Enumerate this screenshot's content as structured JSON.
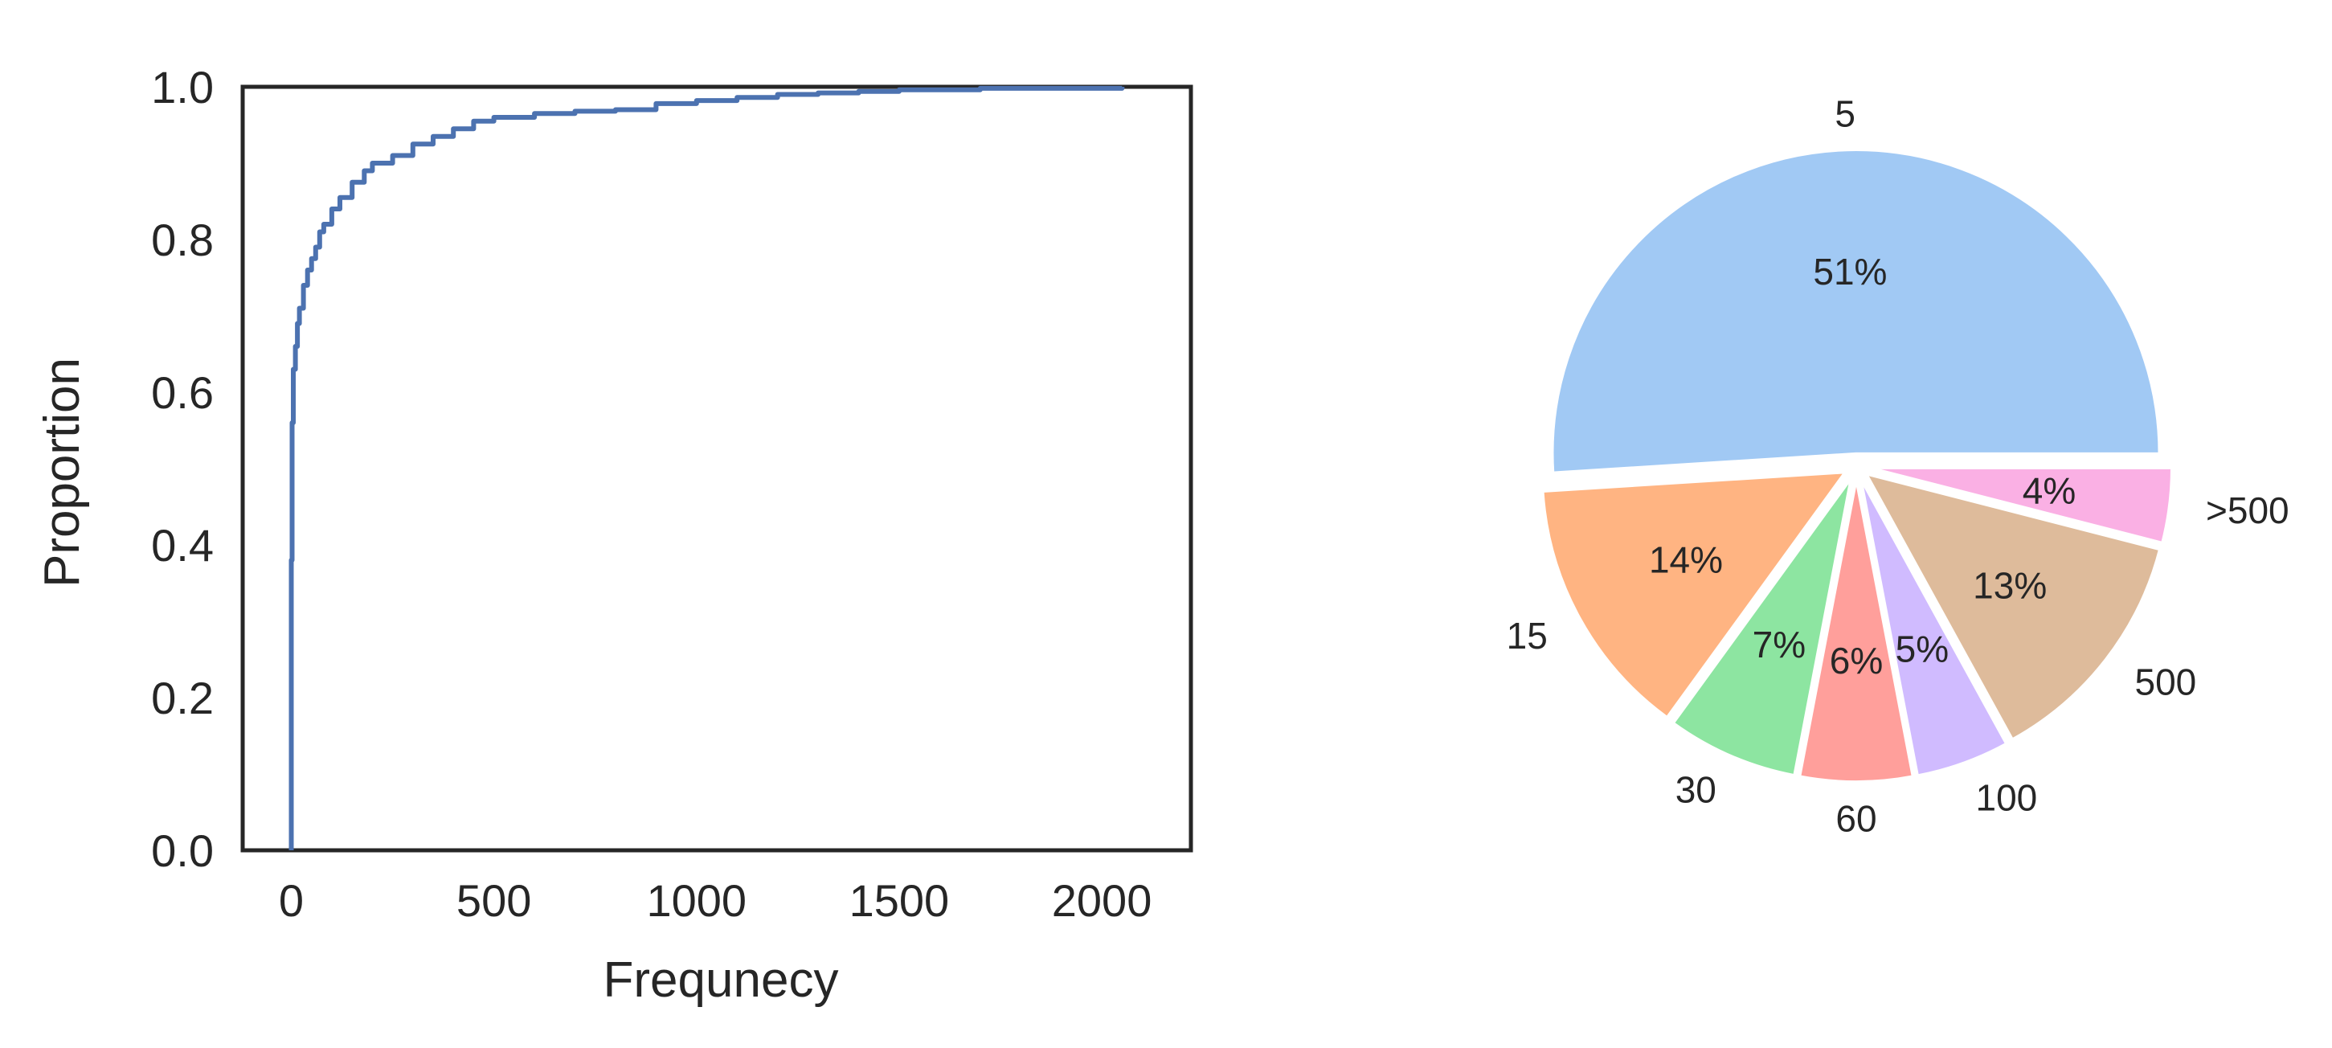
{
  "chart_data": [
    {
      "type": "line",
      "subtype": "ecdf",
      "title": "",
      "xlabel": "Frequnecy",
      "ylabel": "Proportion",
      "xlim": [
        -120,
        2220
      ],
      "ylim": [
        0,
        1.0
      ],
      "xticks": [
        "0",
        "500",
        "1000",
        "1500",
        "2000"
      ],
      "yticks": [
        "0.0",
        "0.2",
        "0.4",
        "0.6",
        "0.8",
        "1.0"
      ],
      "grid": false,
      "color": "#4c72b0",
      "series": [
        {
          "x": [
            0,
            0,
            2,
            5,
            10,
            15,
            20,
            30,
            40,
            50,
            60,
            70,
            80,
            100,
            120,
            150,
            180,
            200,
            250,
            300,
            350,
            400,
            450,
            500,
            600,
            700,
            800,
            900,
            1000,
            1100,
            1200,
            1300,
            1400,
            1500,
            1700,
            2050
          ],
          "y": [
            0.0,
            0.38,
            0.56,
            0.63,
            0.66,
            0.69,
            0.71,
            0.74,
            0.76,
            0.775,
            0.79,
            0.81,
            0.82,
            0.84,
            0.855,
            0.875,
            0.89,
            0.9,
            0.91,
            0.925,
            0.935,
            0.945,
            0.955,
            0.96,
            0.965,
            0.968,
            0.97,
            0.978,
            0.982,
            0.986,
            0.99,
            0.992,
            0.994,
            0.996,
            0.998,
            1.0
          ]
        }
      ]
    },
    {
      "type": "pie",
      "title": "",
      "categories": [
        "5",
        "15",
        "30",
        "60",
        "100",
        "500",
        ">500"
      ],
      "values": [
        51,
        14,
        7,
        6,
        5,
        13,
        4
      ],
      "value_labels": [
        "51%",
        "14%",
        "7%",
        "6%",
        "5%",
        "13%",
        "4%"
      ],
      "colors": [
        "#a1c9f4",
        "#ffb482",
        "#8de5a1",
        "#ff9f9b",
        "#d0bbff",
        "#debb9b",
        "#fab0e4"
      ],
      "start_angle_deg": 0,
      "direction": "counterclockwise",
      "exploded": true
    }
  ]
}
